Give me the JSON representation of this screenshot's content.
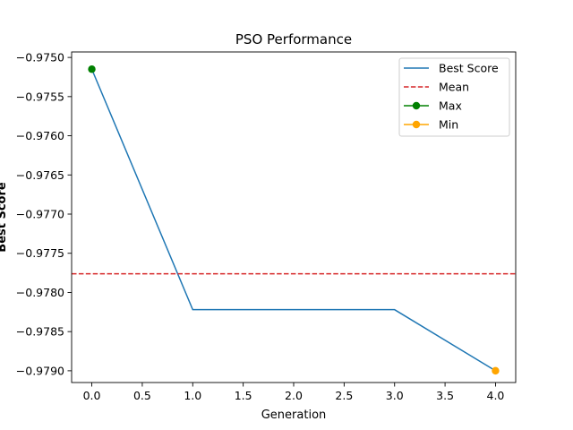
{
  "chart_data": {
    "type": "line",
    "title": "PSO Performance",
    "xlabel": "Generation",
    "ylabel": "Best Score",
    "xlim": [
      -0.2,
      4.2
    ],
    "ylim": [
      -0.97915,
      -0.97493
    ],
    "x_ticks": [
      0.0,
      0.5,
      1.0,
      1.5,
      2.0,
      2.5,
      3.0,
      3.5,
      4.0
    ],
    "x_tick_labels": [
      "0.0",
      "0.5",
      "1.0",
      "1.5",
      "2.0",
      "2.5",
      "3.0",
      "3.5",
      "4.0"
    ],
    "y_ticks": [
      -0.979,
      -0.9785,
      -0.978,
      -0.9775,
      -0.977,
      -0.9765,
      -0.976,
      -0.9755,
      -0.975
    ],
    "y_tick_labels": [
      "−0.9790",
      "−0.9785",
      "−0.9780",
      "−0.9775",
      "−0.9770",
      "−0.9765",
      "−0.9760",
      "−0.9755",
      "−0.9750"
    ],
    "grid": false,
    "legend_position": "top-right",
    "series": [
      {
        "name": "Best Score",
        "style": "line",
        "color": "#1f77b4",
        "x": [
          0,
          1,
          2,
          3,
          4
        ],
        "y": [
          -0.97515,
          -0.97822,
          -0.97822,
          -0.97822,
          -0.979
        ]
      },
      {
        "name": "Mean",
        "style": "hline-dashed",
        "color": "#d62728",
        "y": -0.977762
      },
      {
        "name": "Max",
        "style": "marker",
        "color": "#008000",
        "x": [
          0
        ],
        "y": [
          -0.97515
        ]
      },
      {
        "name": "Min",
        "style": "marker",
        "color": "#ffa500",
        "x": [
          4
        ],
        "y": [
          -0.979
        ]
      }
    ]
  }
}
